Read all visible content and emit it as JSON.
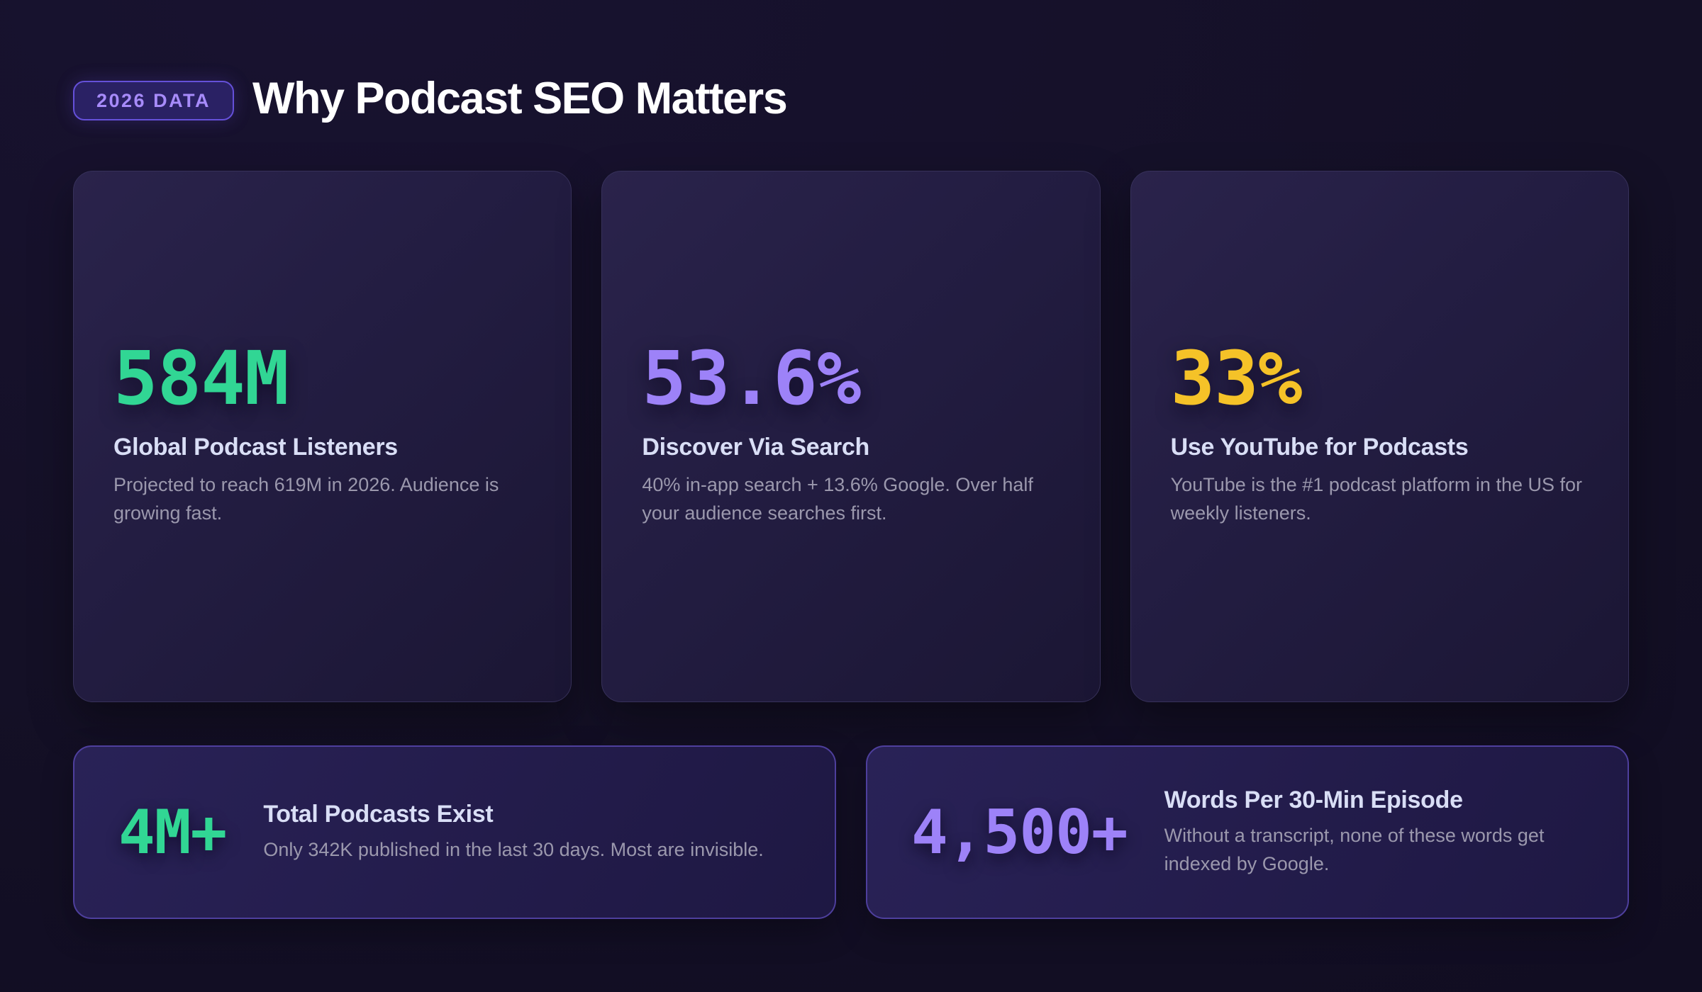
{
  "header": {
    "badge": "2026 DATA",
    "title": "Why Podcast SEO Matters"
  },
  "colors": {
    "accent_green": "#31d694",
    "accent_purple": "#9d82f8",
    "accent_yellow": "#f5c228",
    "badge_text": "#a78bfa",
    "heading_light": "#d9def6",
    "body_gray": "#9b98ad",
    "page_background": "#141026",
    "bottom_card_border": "#4e3f9d"
  },
  "stat_cards": [
    {
      "value": "584M",
      "accent": "#31d694",
      "title": "Global Podcast Listeners",
      "description": "Projected to reach 619M in 2026. Audience is growing fast."
    },
    {
      "value": "53.6%",
      "accent": "#9d82f8",
      "title": "Discover Via Search",
      "description": "40% in-app search + 13.6% Google. Over half your audience searches first."
    },
    {
      "value": "33%",
      "accent": "#f5c228",
      "title": "Use YouTube for Podcasts",
      "description": "YouTube is the #1 podcast platform in the US for weekly listeners."
    }
  ],
  "highlight_cards": [
    {
      "value": "4M+",
      "accent": "#31d694",
      "title": "Total Podcasts Exist",
      "description": "Only 342K published in the last 30 days. Most are invisible."
    },
    {
      "value": "4,500+",
      "accent": "#9d82f8",
      "title": "Words Per 30-Min Episode",
      "description": "Without a transcript, none of these words get indexed by Google."
    }
  ]
}
